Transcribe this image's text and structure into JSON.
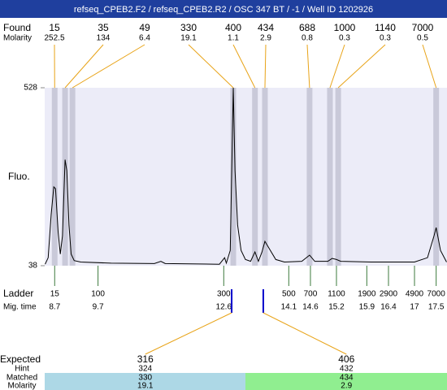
{
  "chart_data": {
    "type": "line",
    "title": "refseq_CPEB2.F2 / refseq_CPEB2.R2 / OSC 347 BT / -1 / Well ID 1202926",
    "y_label": "Fluo.",
    "ylim": [
      38,
      528
    ],
    "yticks": [
      38,
      528
    ],
    "xlim": [
      8.47,
      17.75
    ],
    "x": [
      8.48,
      8.55,
      8.62,
      8.68,
      8.72,
      8.78,
      8.83,
      8.88,
      8.94,
      8.98,
      9.03,
      9.08,
      9.15,
      9.3,
      10.0,
      11.0,
      11.15,
      11.25,
      12.5,
      12.62,
      12.66,
      12.75,
      12.8,
      12.82,
      12.86,
      12.92,
      13.0,
      13.1,
      13.22,
      13.32,
      13.4,
      13.48,
      13.55,
      13.65,
      13.8,
      14.0,
      14.4,
      14.58,
      14.7,
      15.0,
      15.1,
      15.2,
      15.3,
      16.0,
      17.0,
      17.3,
      17.45,
      17.5,
      17.6,
      17.74
    ],
    "series": [
      {
        "color": "#000000",
        "values": [
          42,
          60,
          180,
          255,
          250,
          130,
          70,
          120,
          330,
          300,
          150,
          70,
          52,
          48,
          45,
          44,
          50,
          44,
          42,
          60,
          45,
          80,
          400,
          528,
          300,
          150,
          80,
          55,
          50,
          76,
          50,
          75,
          105,
          85,
          55,
          48,
          50,
          67,
          50,
          50,
          58,
          55,
          50,
          48,
          48,
          60,
          120,
          143,
          80,
          48
        ]
      }
    ],
    "found": {
      "label": "Found",
      "molarity_label": "Molarity",
      "sizes": [
        15,
        35,
        49,
        330,
        400,
        434,
        688,
        1000,
        1140,
        7000
      ],
      "molarity": [
        252.5,
        134,
        6.4,
        19.1,
        1.1,
        2.9,
        0.8,
        0.3,
        0.3,
        0.5
      ],
      "times": [
        8.7,
        8.94,
        9.11,
        12.82,
        13.32,
        13.55,
        14.58,
        15.05,
        15.24,
        17.5
      ]
    },
    "ladder": {
      "label": "Ladder",
      "time_label": "Mig. time",
      "sizes": [
        15,
        100,
        300,
        500,
        700,
        1100,
        1900,
        2900,
        4900,
        7000
      ],
      "times": [
        8.7,
        9.7,
        12.6,
        14.1,
        14.6,
        15.2,
        15.9,
        16.4,
        17,
        17.5
      ]
    },
    "expected": {
      "label": "Expected",
      "hint_label": "Hint",
      "matched_label": "Matched",
      "molarity_label": "Molarity",
      "sizes": [
        316,
        406
      ],
      "hint": [
        324,
        432
      ],
      "matched": [
        330,
        434
      ],
      "molarity": [
        19.1,
        2.9
      ]
    }
  }
}
